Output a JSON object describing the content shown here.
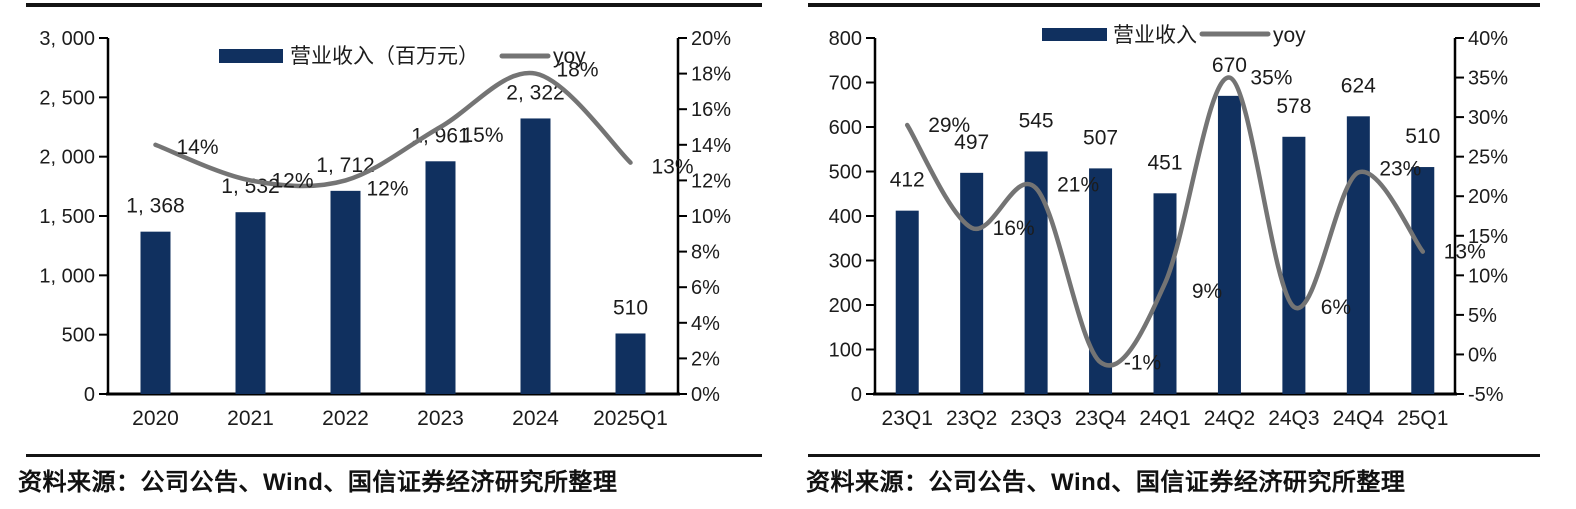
{
  "colors": {
    "bar_navy": "#10305f",
    "line_gray": "#747474",
    "text_dark": "#1c1c1c",
    "axis_black": "#000000"
  },
  "panels": [
    {
      "source_text": "资料来源：公司公告、Wind、国信证券经济研究所整理",
      "chart_data": {
        "type": "combo",
        "legend_position": "top-center",
        "categories": [
          "2020",
          "2021",
          "2022",
          "2023",
          "2024",
          "2025Q1"
        ],
        "series": [
          {
            "name": "营业收入（百万元）",
            "type": "bar",
            "axis": "left",
            "values": [
              1368,
              1532,
              1712,
              1961,
              2322,
              510
            ],
            "labels": [
              "1, 368",
              "1, 532",
              "1, 712",
              "1, 961",
              "2, 322",
              "510"
            ]
          },
          {
            "name": "yoy",
            "type": "line",
            "axis": "right",
            "values": [
              14,
              12,
              12,
              15,
              18,
              13
            ],
            "labels": [
              "14%",
              "12%",
              "12%",
              "15%",
              "18%",
              "13%"
            ],
            "label_dy": [
              2,
              0,
              8,
              8,
              -4,
              4
            ]
          }
        ],
        "left_axis": {
          "min": 0,
          "max": 3000,
          "step": 500,
          "tick_labels": [
            "3, 000",
            "2, 500",
            "2, 000",
            "1, 500",
            "1, 000",
            "500",
            "0"
          ]
        },
        "right_axis": {
          "min": 0,
          "max": 20,
          "step": 2,
          "tick_labels": [
            "20%",
            "18%",
            "16%",
            "14%",
            "12%",
            "10%",
            "8%",
            "6%",
            "4%",
            "2%",
            "0%"
          ]
        }
      }
    },
    {
      "source_text": "资料来源：公司公告、Wind、国信证券经济研究所整理",
      "chart_data": {
        "type": "combo",
        "legend_position": "top-center",
        "categories": [
          "23Q1",
          "23Q2",
          "23Q3",
          "23Q4",
          "24Q1",
          "24Q2",
          "24Q3",
          "24Q4",
          "25Q1"
        ],
        "series": [
          {
            "name": "营业收入",
            "type": "bar",
            "axis": "left",
            "values": [
              412,
              497,
              545,
              507,
              451,
              670,
              578,
              624,
              510
            ],
            "labels": [
              "412",
              "497",
              "545",
              "507",
              "451",
              "670",
              "578",
              "624",
              "510"
            ]
          },
          {
            "name": "yoy",
            "type": "line",
            "axis": "right",
            "values": [
              29,
              16,
              21,
              -1,
              9,
              35,
              6,
              23,
              13
            ],
            "labels": [
              "29%",
              "16%",
              "21%",
              "-1%",
              "9%",
              "35%",
              "6%",
              "23%",
              "13%"
            ],
            "label_dy": [
              0,
              0,
              -4,
              0,
              8,
              0,
              0,
              -4,
              0
            ]
          }
        ],
        "left_axis": {
          "min": 0,
          "max": 800,
          "step": 100,
          "tick_labels": [
            "800",
            "700",
            "600",
            "500",
            "400",
            "300",
            "200",
            "100",
            "0"
          ]
        },
        "right_axis": {
          "min": -5,
          "max": 40,
          "step": 5,
          "tick_labels": [
            "40%",
            "35%",
            "30%",
            "25%",
            "20%",
            "15%",
            "10%",
            "5%",
            "0%",
            "-5%"
          ]
        }
      }
    }
  ]
}
